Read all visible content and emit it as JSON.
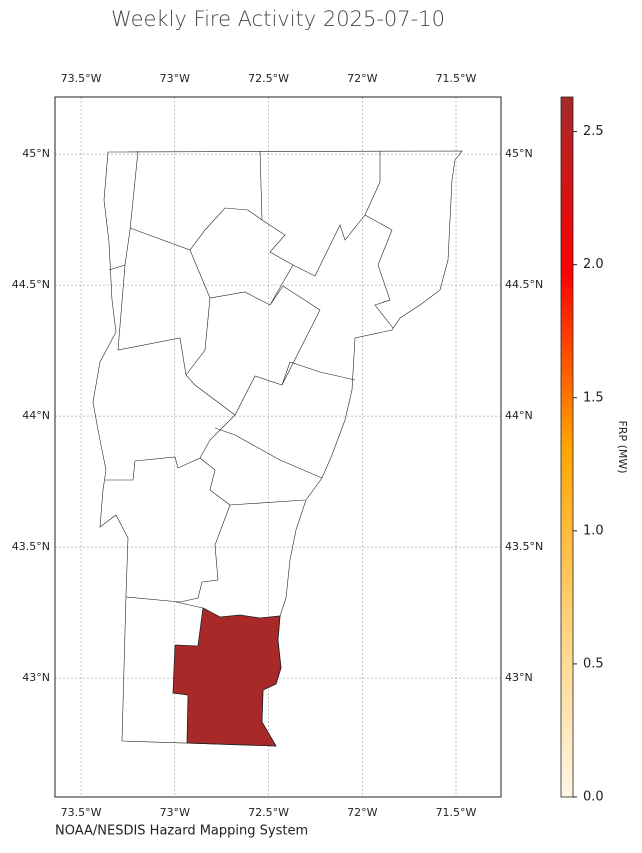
{
  "map": {
    "title": "Weekly Fire Activity 2025-07-10",
    "credit": "NOAA/NESDIS Hazard Mapping System",
    "xlim": [
      -73.639,
      -71.26
    ],
    "ylim": [
      42.546,
      45.218
    ],
    "xticks": [
      {
        "value": -73.5,
        "label": "73.5°W"
      },
      {
        "value": -73,
        "label": "73°W"
      },
      {
        "value": -72.5,
        "label": "72.5°W"
      },
      {
        "value": -72,
        "label": "72°W"
      },
      {
        "value": -71.5,
        "label": "71.5°W"
      }
    ],
    "yticks": [
      {
        "value": 45,
        "label": "45°N"
      },
      {
        "value": 44.5,
        "label": "44.5°N"
      },
      {
        "value": 44,
        "label": "44°N"
      },
      {
        "value": 43.5,
        "label": "43.5°N"
      },
      {
        "value": 43,
        "label": "43°N"
      }
    ],
    "grid": true,
    "regions": [
      {
        "value": 2.6
      }
    ],
    "colorbar": {
      "label": "FRP (MW)",
      "lim": [
        0,
        2.63
      ],
      "ticks": [
        {
          "value": 0,
          "label": "0.0"
        },
        {
          "value": 0.5,
          "label": "0.5"
        },
        {
          "value": 1,
          "label": "1.0"
        },
        {
          "value": 1.5,
          "label": "1.5"
        },
        {
          "value": 2,
          "label": "2.0"
        },
        {
          "value": 2.5,
          "label": "2.5"
        }
      ],
      "colors": [
        "#fff5e6",
        "#ffd27a",
        "#ffa500",
        "#ff0000",
        "#a52a2a"
      ]
    }
  }
}
